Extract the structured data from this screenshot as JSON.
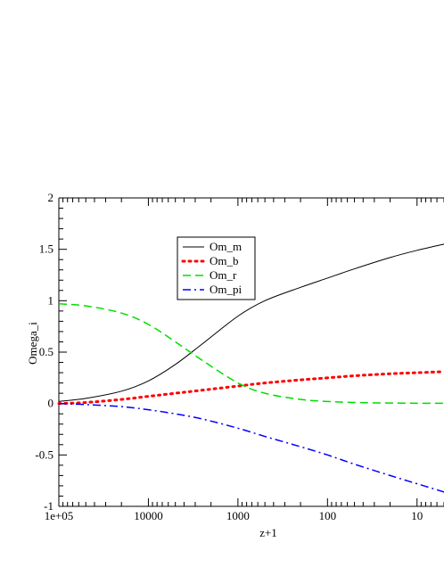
{
  "chart_data": {
    "type": "line",
    "xlabel": "z+1",
    "ylabel": "Omega_i",
    "x_scale": "log",
    "x_reversed": true,
    "xlim": [
      100000,
      5
    ],
    "ylim": [
      -1,
      2
    ],
    "x_ticks": [
      {
        "value": 100000,
        "label": "1e+05"
      },
      {
        "value": 10000,
        "label": "10000"
      },
      {
        "value": 1000,
        "label": "1000"
      },
      {
        "value": 100,
        "label": "100"
      },
      {
        "value": 10,
        "label": "10"
      }
    ],
    "y_ticks": [
      {
        "value": -1,
        "label": "-1"
      },
      {
        "value": -0.5,
        "label": "-0.5"
      },
      {
        "value": 0,
        "label": "0"
      },
      {
        "value": 0.5,
        "label": "0.5"
      },
      {
        "value": 1,
        "label": "1"
      },
      {
        "value": 1.5,
        "label": "1.5"
      },
      {
        "value": 2,
        "label": "2"
      }
    ],
    "legend_position": "upper-left",
    "series": [
      {
        "name": "Om_m",
        "color": "#000000",
        "style": "solid",
        "x": [
          100000,
          50000,
          20000,
          10000,
          5000,
          2500,
          1000,
          500,
          200,
          100,
          50,
          20,
          10,
          5
        ],
        "y": [
          0.02,
          0.05,
          0.12,
          0.22,
          0.38,
          0.58,
          0.85,
          1.0,
          1.13,
          1.22,
          1.31,
          1.42,
          1.49,
          1.55
        ]
      },
      {
        "name": "Om_b",
        "color": "#ff0000",
        "style": "dotted",
        "x": [
          100000,
          50000,
          20000,
          10000,
          5000,
          2500,
          1000,
          500,
          200,
          100,
          50,
          20,
          10,
          5
        ],
        "y": [
          0.0,
          0.01,
          0.04,
          0.07,
          0.1,
          0.13,
          0.17,
          0.2,
          0.23,
          0.25,
          0.27,
          0.29,
          0.3,
          0.31
        ]
      },
      {
        "name": "Om_r",
        "color": "#00dd00",
        "style": "dashed",
        "x": [
          100000,
          50000,
          20000,
          10000,
          5000,
          2500,
          1000,
          500,
          200,
          100,
          50,
          20,
          10,
          5
        ],
        "y": [
          0.97,
          0.95,
          0.88,
          0.77,
          0.6,
          0.42,
          0.2,
          0.1,
          0.04,
          0.02,
          0.01,
          0.005,
          0.003,
          0.002
        ]
      },
      {
        "name": "Om_pi",
        "color": "#0000ff",
        "style": "dashdot",
        "x": [
          100000,
          50000,
          20000,
          10000,
          5000,
          2500,
          1000,
          500,
          200,
          100,
          50,
          20,
          10,
          5
        ],
        "y": [
          0.0,
          -0.01,
          -0.03,
          -0.06,
          -0.1,
          -0.15,
          -0.24,
          -0.32,
          -0.42,
          -0.5,
          -0.59,
          -0.7,
          -0.78,
          -0.86
        ]
      }
    ]
  }
}
